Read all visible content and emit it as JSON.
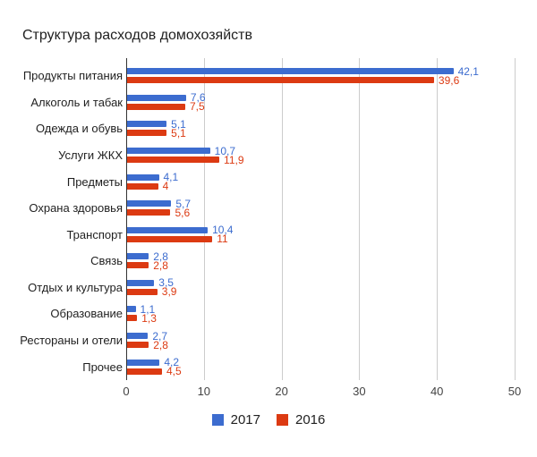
{
  "title": "Структура расходов домохозяйств",
  "colors": {
    "series_2017": "#3c6ccf",
    "series_2016": "#dc3a12",
    "gridline": "#cccccc",
    "axis_line": "#333333",
    "tick_text": "#424242",
    "category_text": "#1f1f1f",
    "title_text": "#212121"
  },
  "chart_data": {
    "type": "bar",
    "orientation": "horizontal",
    "title": "Структура расходов домохозяйств",
    "xlabel": "",
    "ylabel": "",
    "xlim": [
      0,
      50
    ],
    "grid": true,
    "legend_position": "bottom",
    "x_ticks": [
      "0",
      "10",
      "20",
      "30",
      "40",
      "50"
    ],
    "categories": [
      "Продукты питания",
      "Алкоголь и табак",
      "Одежда и обувь",
      "Услуги ЖКХ",
      "Предметы",
      "Охрана здоровья",
      "Транспорт",
      "Связь",
      "Отдых и культура",
      "Образование",
      "Рестораны и отели",
      "Прочее"
    ],
    "series": [
      {
        "name": "2017",
        "color": "#3c6ccf",
        "values": [
          42.1,
          7.6,
          5.1,
          10.7,
          4.1,
          5.7,
          10.4,
          2.8,
          3.5,
          1.1,
          2.7,
          4.2
        ],
        "labels": [
          "42,1",
          "7,6",
          "5,1",
          "10,7",
          "4,1",
          "5,7",
          "10,4",
          "2,8",
          "3,5",
          "1,1",
          "2,7",
          "4,2"
        ]
      },
      {
        "name": "2016",
        "color": "#dc3a12",
        "values": [
          39.6,
          7.5,
          5.1,
          11.9,
          4.0,
          5.6,
          11.0,
          2.8,
          3.9,
          1.3,
          2.8,
          4.5
        ],
        "labels": [
          "39,6",
          "7,5",
          "5,1",
          "11,9",
          "4",
          "5,6",
          "11",
          "2,8",
          "3,9",
          "1,3",
          "2,8",
          "4,5"
        ]
      }
    ]
  },
  "legend": {
    "items": [
      {
        "label": "2017",
        "color": "#3c6ccf"
      },
      {
        "label": "2016",
        "color": "#dc3a12"
      }
    ]
  }
}
